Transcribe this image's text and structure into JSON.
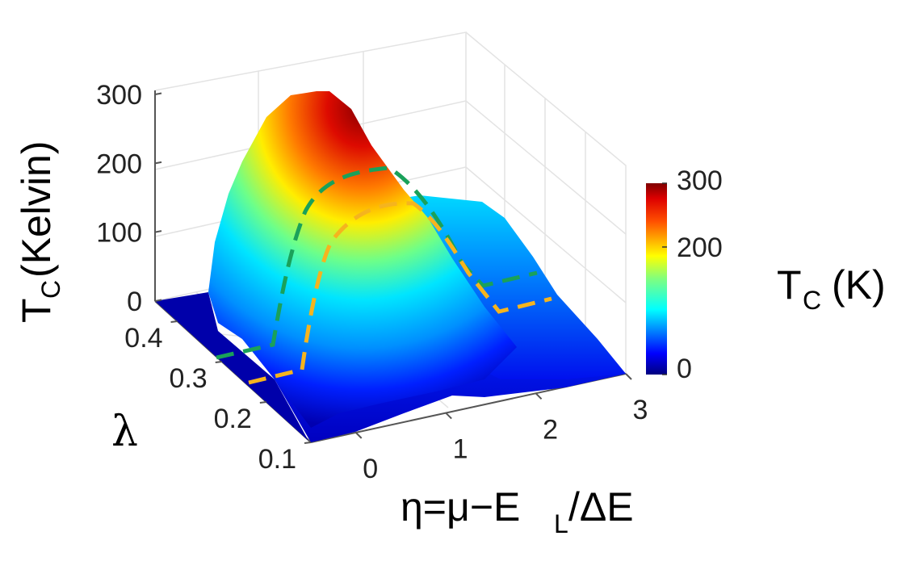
{
  "chart_data": {
    "type": "surface",
    "title": "",
    "z_axis": {
      "label_main": "T",
      "label_sub": "C",
      "label_rest": "(Kelvin)",
      "ticks": [
        "0",
        "100",
        "200",
        "300"
      ],
      "range": [
        0,
        300
      ]
    },
    "y_axis": {
      "label": "λ",
      "ticks": [
        "0.1",
        "0.2",
        "0.3",
        "0.4"
      ],
      "range": [
        0.1,
        0.45
      ]
    },
    "x_axis": {
      "label_a": "η=μ−E",
      "label_sub": "L",
      "label_b": "/ΔE",
      "ticks": [
        "0",
        "1",
        "2",
        "3"
      ],
      "range": [
        -0.5,
        3
      ]
    },
    "colorbar": {
      "ticks": [
        "0",
        "200",
        "300"
      ],
      "range": [
        0,
        300
      ],
      "label_main": "T",
      "label_sub": "C",
      "label_rest": "(K)",
      "colormap": [
        "#00007f",
        "#0000ff",
        "#007fff",
        "#00ffff",
        "#7fff7f",
        "#ffff00",
        "#ff7f00",
        "#ff0000",
        "#7f0000"
      ]
    },
    "surface_peak": {
      "eta": 0.2,
      "lambda": 0.45,
      "tc": 305
    },
    "boundaries": [
      {
        "color": "#1aa15a",
        "style": "dashed"
      },
      {
        "color": "#f5b41e",
        "style": "dashed"
      }
    ]
  }
}
